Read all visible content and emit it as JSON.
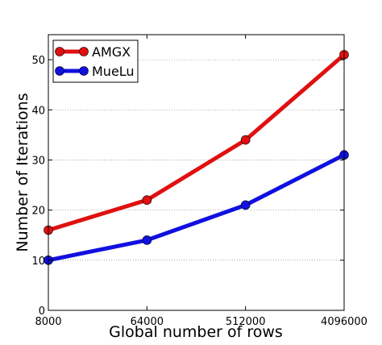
{
  "chart_data": {
    "type": "line",
    "xscale": "log2",
    "x": [
      8000,
      64000,
      512000,
      4096000
    ],
    "x_tick_labels": [
      "8000",
      "64000",
      "512000",
      "4096000"
    ],
    "series": [
      {
        "name": "AMGX",
        "values": [
          16,
          22,
          34,
          51
        ],
        "color": "#e01010"
      },
      {
        "name": "MueLu",
        "values": [
          10,
          14,
          21,
          31
        ],
        "color": "#1010e0"
      }
    ],
    "xlabel": "Global number of rows",
    "ylabel": "Number of Iterations",
    "ylim": [
      0,
      55
    ],
    "y_ticks": [
      0,
      10,
      20,
      30,
      40,
      50
    ],
    "grid": "horizontal dotted",
    "legend_position": "upper-left"
  }
}
